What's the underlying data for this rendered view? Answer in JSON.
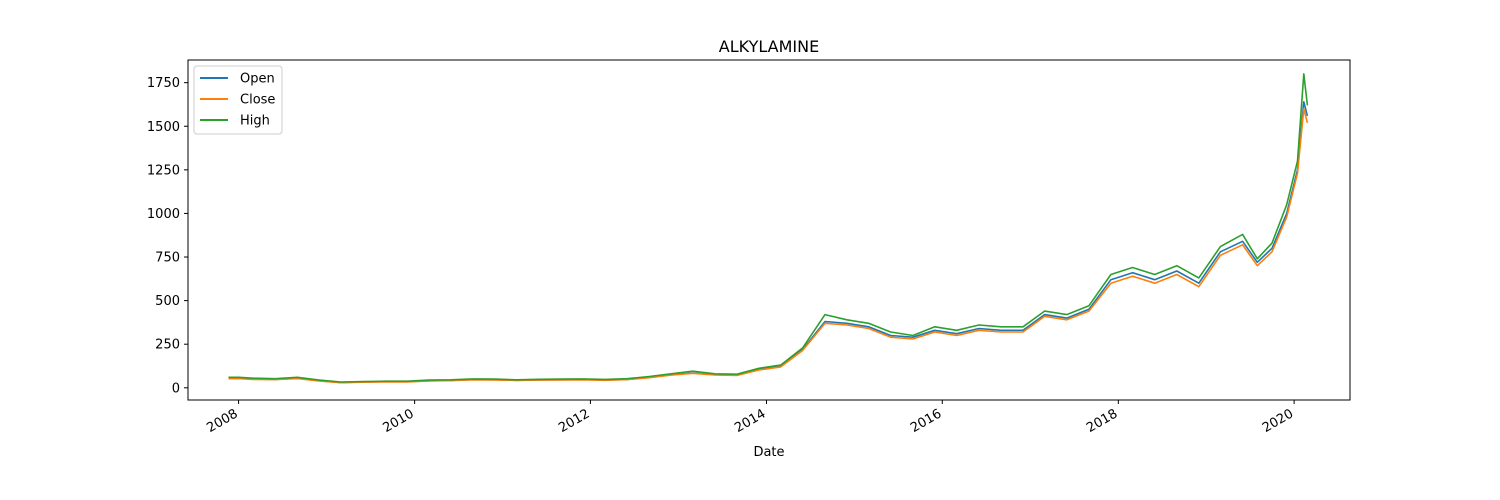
{
  "chart_data": {
    "type": "line",
    "title": "ALKYLAMINE",
    "xlabel": "Date",
    "ylabel": "",
    "xlim": [
      "2007-06-05",
      "2020-08-20"
    ],
    "ylim": [
      -70,
      1880
    ],
    "x_ticks": [
      "2008",
      "2010",
      "2012",
      "2014",
      "2016",
      "2018",
      "2020"
    ],
    "y_ticks": [
      0,
      250,
      500,
      750,
      1000,
      1250,
      1500,
      1750
    ],
    "legend": "top-left",
    "grid": false,
    "colors": {
      "Open": "#1f77b4",
      "Close": "#ff7f0e",
      "High": "#2ca02c"
    },
    "x": [
      "2007-11-20",
      "2008-01-01",
      "2008-03-01",
      "2008-06-01",
      "2008-09-01",
      "2008-12-01",
      "2009-03-01",
      "2009-06-01",
      "2009-09-01",
      "2009-12-01",
      "2010-03-01",
      "2010-06-01",
      "2010-09-01",
      "2010-12-01",
      "2011-03-01",
      "2011-06-01",
      "2011-09-01",
      "2011-12-01",
      "2012-03-01",
      "2012-06-01",
      "2012-09-01",
      "2012-12-01",
      "2013-03-01",
      "2013-06-01",
      "2013-09-01",
      "2013-12-01",
      "2014-03-01",
      "2014-06-01",
      "2014-09-01",
      "2014-12-01",
      "2015-03-01",
      "2015-06-01",
      "2015-09-01",
      "2015-12-01",
      "2016-03-01",
      "2016-06-01",
      "2016-09-01",
      "2016-12-01",
      "2017-03-01",
      "2017-06-01",
      "2017-09-01",
      "2017-12-01",
      "2018-03-01",
      "2018-06-01",
      "2018-09-01",
      "2018-12-01",
      "2019-03-01",
      "2019-06-01",
      "2019-08-01",
      "2019-10-01",
      "2019-12-01",
      "2020-01-15",
      "2020-02-10",
      "2020-02-25"
    ],
    "series": [
      {
        "name": "Open",
        "values": [
          55,
          55,
          50,
          48,
          55,
          40,
          30,
          33,
          35,
          35,
          40,
          42,
          47,
          46,
          43,
          45,
          46,
          47,
          44,
          48,
          60,
          75,
          85,
          75,
          72,
          105,
          125,
          220,
          380,
          370,
          350,
          300,
          290,
          330,
          310,
          340,
          330,
          330,
          420,
          400,
          450,
          620,
          660,
          620,
          670,
          600,
          780,
          840,
          720,
          800,
          1000,
          1250,
          1640,
          1560
        ]
      },
      {
        "name": "Close",
        "values": [
          52,
          53,
          48,
          47,
          53,
          39,
          29,
          32,
          34,
          34,
          39,
          41,
          46,
          45,
          42,
          44,
          45,
          46,
          43,
          47,
          58,
          73,
          83,
          74,
          71,
          102,
          120,
          215,
          370,
          360,
          340,
          290,
          280,
          320,
          300,
          330,
          320,
          320,
          410,
          390,
          440,
          600,
          640,
          600,
          650,
          580,
          760,
          820,
          700,
          780,
          980,
          1230,
          1600,
          1520
        ]
      },
      {
        "name": "High",
        "values": [
          60,
          60,
          55,
          52,
          60,
          44,
          33,
          36,
          38,
          38,
          44,
          46,
          51,
          50,
          46,
          49,
          50,
          51,
          48,
          52,
          65,
          80,
          95,
          80,
          78,
          112,
          130,
          230,
          420,
          390,
          370,
          320,
          300,
          350,
          330,
          360,
          350,
          350,
          440,
          420,
          470,
          650,
          690,
          650,
          700,
          630,
          810,
          880,
          740,
          830,
          1050,
          1300,
          1800,
          1620
        ]
      }
    ]
  }
}
